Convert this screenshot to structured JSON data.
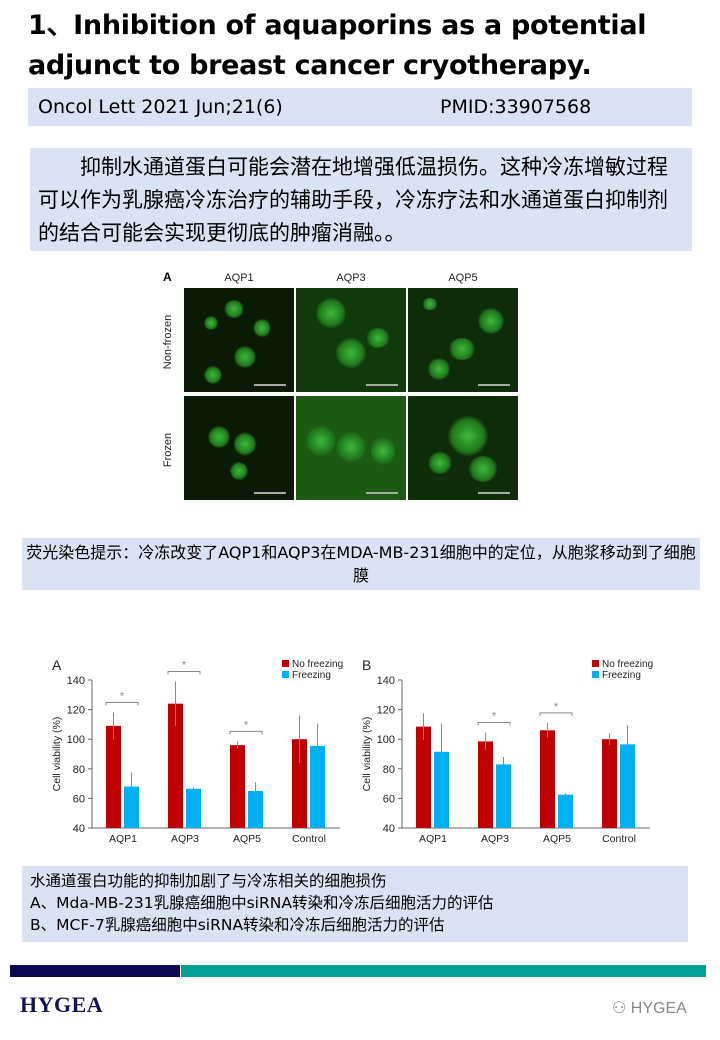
{
  "title": "1、Inhibition of aquaporins as a potential adjunct to breast cancer cryotherapy.",
  "citation": {
    "journal": "Oncol Lett 2021 Jun;21(6)",
    "pmid": "PMID:33907568"
  },
  "summary": "抑制水通道蛋白可能会潜在地增强低温损伤。这种冷冻增敏过程可以作为乳腺癌冷冻治疗的辅助手段，冷冻疗法和水通道蛋白抑制剂的结合可能会实现更彻底的肿瘤消融。。",
  "micrograph": {
    "panel_label": "A",
    "columns": [
      "AQP1",
      "AQP3",
      "AQP5"
    ],
    "rows": [
      "Non-frozen",
      "Frozen"
    ]
  },
  "caption": "荧光染色提示：冷冻改变了AQP1和AQP3在MDA-MB-231细胞中的定位，从胞浆移动到了细胞膜",
  "chart_data": [
    {
      "type": "bar",
      "panel_label": "A",
      "categories": [
        "AQP1",
        "AQP3",
        "AQP5",
        "Control"
      ],
      "ylabel": "Cell viability (%)",
      "ylim": [
        40,
        140
      ],
      "yticks": [
        40,
        60,
        80,
        100,
        120,
        140
      ],
      "legend": "top-right",
      "series": [
        {
          "name": "No freezing",
          "color": "#c00000",
          "values": [
            109,
            124,
            96,
            100
          ],
          "errors": [
            9,
            15,
            2.5,
            16
          ]
        },
        {
          "name": "Freezing",
          "color": "#00b0f0",
          "values": [
            68,
            66.5,
            65,
            95.5
          ],
          "errors": [
            9.5,
            1,
            6,
            15
          ]
        }
      ],
      "significance": [
        "*",
        "*",
        "*",
        ""
      ]
    },
    {
      "type": "bar",
      "panel_label": "B",
      "categories": [
        "AQP1",
        "AQP3",
        "AQP5",
        "Control"
      ],
      "ylabel": "Cell viability (%)",
      "ylim": [
        40,
        140
      ],
      "yticks": [
        40,
        60,
        80,
        100,
        120,
        140
      ],
      "legend": "top-right",
      "series": [
        {
          "name": "No freezing",
          "color": "#c00000",
          "values": [
            108.5,
            98.5,
            106,
            100
          ],
          "errors": [
            9,
            6,
            5,
            4
          ]
        },
        {
          "name": "Freezing",
          "color": "#00b0f0",
          "values": [
            91.5,
            83,
            62.5,
            96.5
          ],
          "errors": [
            19,
            5,
            1,
            13
          ]
        }
      ],
      "significance": [
        "",
        "*",
        "*",
        ""
      ]
    }
  ],
  "findings": {
    "heading": "水通道蛋白功能的抑制加剧了与冷冻相关的细胞损伤",
    "line_a": "A、Mda-MB-231乳腺癌细胞中siRNA转染和冷冻后细胞活力的评估",
    "line_b": "B、MCF-7乳腺癌细胞中siRNA转染和冷冻后细胞活力的评估"
  },
  "footer": {
    "logo": "HYGEA",
    "watermark": "HYGEA",
    "watermark_icon": "wechat-icon"
  }
}
